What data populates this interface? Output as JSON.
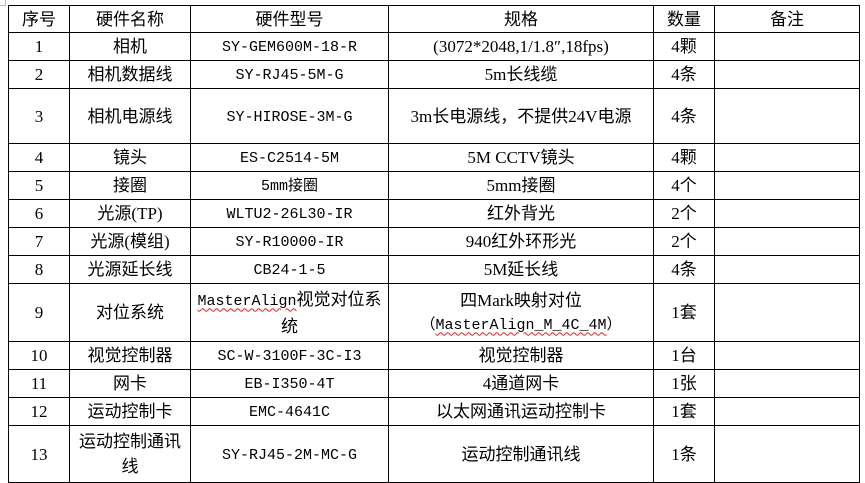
{
  "headers": [
    "序号",
    "硬件名称",
    "硬件型号",
    "规格",
    "数量",
    "备注"
  ],
  "rows": [
    {
      "no": "1",
      "name": "相机",
      "model": "SY-GEM600M-18-R",
      "spec": "(3072*2048,1/1.8″,18fps)",
      "qty": "4颗",
      "note": ""
    },
    {
      "no": "2",
      "name": "相机数据线",
      "model": "SY-RJ45-5M-G",
      "spec": "5m长线缆",
      "qty": "4条",
      "note": ""
    },
    {
      "no": "3",
      "name": "相机电源线",
      "model": "SY-HIROSE-3M-G",
      "spec": "3m长电源线，不提供24V电源",
      "qty": "4条",
      "note": ""
    },
    {
      "no": "4",
      "name": "镜头",
      "model": "ES-C2514-5M",
      "spec": "5M CCTV镜头",
      "qty": "4颗",
      "note": ""
    },
    {
      "no": "5",
      "name": "接圈",
      "model": "5mm接圈",
      "spec": "5mm接圈",
      "qty": "4个",
      "note": ""
    },
    {
      "no": "6",
      "name": "光源(TP)",
      "model": "WLTU2-26L30-IR",
      "spec": "红外背光",
      "qty": "2个",
      "note": ""
    },
    {
      "no": "7",
      "name": "光源(模组)",
      "model": "SY-R10000-IR",
      "spec": "940红外环形光",
      "qty": "2个",
      "note": ""
    },
    {
      "no": "8",
      "name": "光源延长线",
      "model": "CB24-1-5",
      "spec": "5M延长线",
      "qty": "4条",
      "note": ""
    },
    {
      "no": "9",
      "name": "对位系统",
      "model_a": "MasterAlign",
      "model_b": "视觉对位系统",
      "spec_a": "四Mark映射对位",
      "spec_b": "MasterAlign_M_4C_4M",
      "qty": "1套",
      "note": ""
    },
    {
      "no": "10",
      "name": "视觉控制器",
      "model": "SC-W-3100F-3C-I3",
      "spec": "视觉控制器",
      "qty": "1台",
      "note": ""
    },
    {
      "no": "11",
      "name": "网卡",
      "model": "EB-I350-4T",
      "spec": "4通道网卡",
      "qty": "1张",
      "note": ""
    },
    {
      "no": "12",
      "name": "运动控制卡",
      "model": "EMC-4641C",
      "spec": "以太网通讯运动控制卡",
      "qty": "1套",
      "note": ""
    },
    {
      "no": "13",
      "name": "运动控制通讯线",
      "model": "SY-RJ45-2M-MC-G",
      "spec": "运动控制通讯线",
      "qty": "1条",
      "note": ""
    }
  ]
}
